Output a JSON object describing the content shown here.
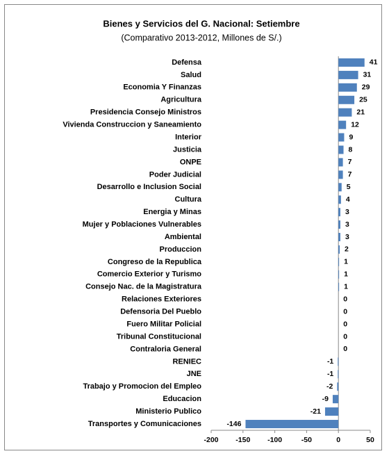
{
  "chart_data": {
    "type": "bar",
    "orientation": "horizontal",
    "title": "Bienes y Servicios del G. Nacional:  Setiembre",
    "subtitle": "(Comparativo 2013-2012, Millones de S/.)",
    "categories": [
      "Defensa",
      "Salud",
      "Economia Y Finanzas",
      "Agricultura",
      "Presidencia Consejo Ministros",
      "Vivienda Construccion y Saneamiento",
      "Interior",
      "Justicia",
      "ONPE",
      "Poder Judicial",
      "Desarrollo e Inclusion Social",
      "Cultura",
      "Energia y Minas",
      "Mujer y Poblaciones Vulnerables",
      "Ambiental",
      "Produccion",
      "Congreso de la Republica",
      "Comercio Exterior y Turismo",
      "Consejo Nac. de la Magistratura",
      "Relaciones Exteriores",
      "Defensoria Del Pueblo",
      "Fuero Militar Policial",
      "Tribunal Constitucional",
      "Contraloria General",
      "RENIEC",
      "JNE",
      "Trabajo y Promocion del Empleo",
      "Educacion",
      "Ministerio Publico",
      "Transportes y Comunicaciones"
    ],
    "values": [
      41,
      31,
      29,
      25,
      21,
      12,
      9,
      8,
      7,
      7,
      5,
      4,
      3,
      3,
      3,
      2,
      1,
      1,
      1,
      0,
      0,
      0,
      0,
      0,
      -1,
      -1,
      -2,
      -9,
      -21,
      -146
    ],
    "color": "#4f81bd",
    "xlim": [
      -200,
      50
    ],
    "xticks": [
      -200,
      -150,
      -100,
      -50,
      0,
      50
    ]
  }
}
